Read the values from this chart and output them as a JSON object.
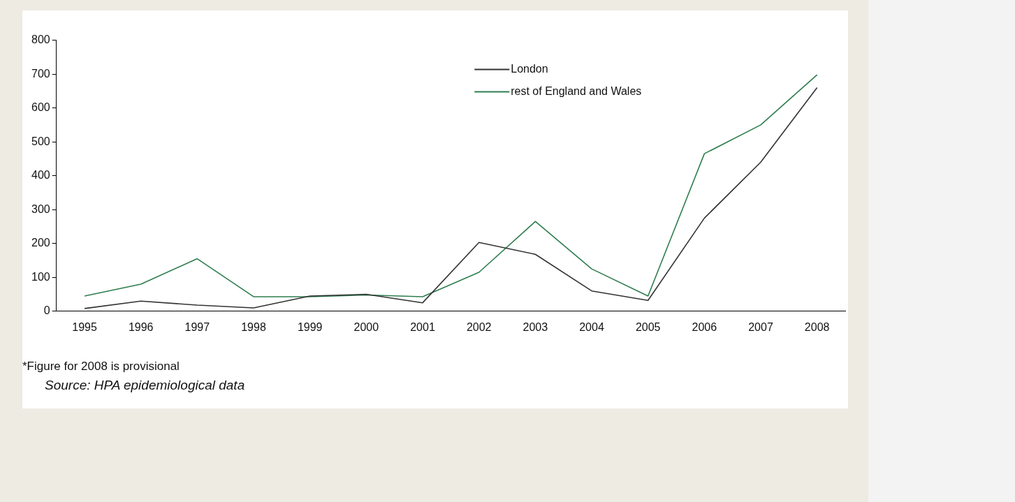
{
  "chart_data": {
    "type": "line",
    "categories": [
      "1995",
      "1996",
      "1997",
      "1998",
      "1999",
      "2000",
      "2001",
      "2002",
      "2003",
      "2004",
      "2005",
      "2006",
      "2007",
      "2008"
    ],
    "series": [
      {
        "name": "London",
        "color": "#333333",
        "values": [
          8,
          30,
          18,
          10,
          45,
          50,
          25,
          203,
          168,
          60,
          32,
          275,
          440,
          660
        ]
      },
      {
        "name": "rest of England and Wales",
        "color": "#2e7d4f",
        "values": [
          45,
          80,
          155,
          43,
          43,
          48,
          43,
          115,
          265,
          125,
          45,
          465,
          550,
          698
        ]
      }
    ],
    "ylim": [
      0,
      800
    ],
    "yticks": [
      0,
      100,
      200,
      300,
      400,
      500,
      600,
      700,
      800
    ],
    "grid": false,
    "legend": "top right",
    "marker": "none",
    "line_style": "solid",
    "annotations": [
      "*Figure for 2008 is provisional",
      "Source: HPA epidemiological data"
    ]
  }
}
